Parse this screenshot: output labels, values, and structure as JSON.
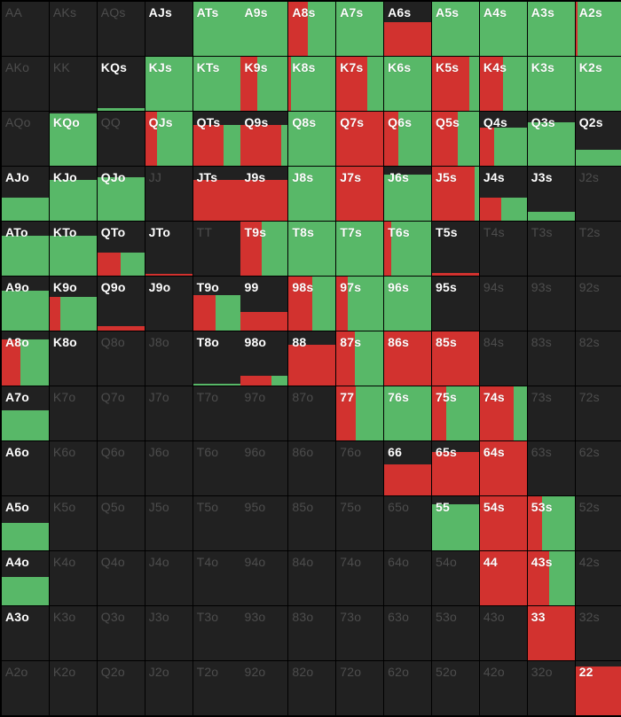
{
  "colors": {
    "raise": "#d2322f",
    "call": "#58b868",
    "fold": "#212121",
    "active_text": "#ffffff",
    "inactive_text": "#4d4d4d"
  },
  "matrix": [
    [
      {
        "hand": "AA",
        "active": false,
        "raise": 0,
        "call": 0
      },
      {
        "hand": "AKs",
        "active": false,
        "raise": 0,
        "call": 0
      },
      {
        "hand": "AQs",
        "active": false,
        "raise": 0,
        "call": 0
      },
      {
        "hand": "AJs",
        "active": true,
        "raise": 0,
        "call": 0
      },
      {
        "hand": "ATs",
        "active": true,
        "raise": 0,
        "call": 1
      },
      {
        "hand": "A9s",
        "active": true,
        "raise": 0,
        "call": 1
      },
      {
        "hand": "A8s",
        "active": true,
        "raise": 0.4,
        "call": 0.6
      },
      {
        "hand": "A7s",
        "active": true,
        "raise": 0,
        "call": 1
      },
      {
        "hand": "A6s",
        "active": true,
        "raise": 1,
        "call": 0,
        "h": 0.62
      },
      {
        "hand": "A5s",
        "active": true,
        "raise": 0,
        "call": 1
      },
      {
        "hand": "A4s",
        "active": true,
        "raise": 0,
        "call": 1
      },
      {
        "hand": "A3s",
        "active": true,
        "raise": 0,
        "call": 1
      },
      {
        "hand": "A2s",
        "active": true,
        "raise": 0.05,
        "call": 0.95
      }
    ],
    [
      {
        "hand": "AKo",
        "active": false,
        "raise": 0,
        "call": 0
      },
      {
        "hand": "KK",
        "active": false,
        "raise": 0,
        "call": 0
      },
      {
        "hand": "KQs",
        "active": true,
        "raise": 0,
        "call": 1,
        "h": 0.05
      },
      {
        "hand": "KJs",
        "active": true,
        "raise": 0,
        "call": 1
      },
      {
        "hand": "KTs",
        "active": true,
        "raise": 0,
        "call": 1
      },
      {
        "hand": "K9s",
        "active": true,
        "raise": 0.35,
        "call": 0.65
      },
      {
        "hand": "K8s",
        "active": true,
        "raise": 0.05,
        "call": 0.95
      },
      {
        "hand": "K7s",
        "active": true,
        "raise": 0.65,
        "call": 0.35
      },
      {
        "hand": "K6s",
        "active": true,
        "raise": 0,
        "call": 1
      },
      {
        "hand": "K5s",
        "active": true,
        "raise": 0.8,
        "call": 0.2
      },
      {
        "hand": "K4s",
        "active": true,
        "raise": 0.5,
        "call": 0.5
      },
      {
        "hand": "K3s",
        "active": true,
        "raise": 0,
        "call": 1
      },
      {
        "hand": "K2s",
        "active": true,
        "raise": 0,
        "call": 1
      }
    ],
    [
      {
        "hand": "AQo",
        "active": false,
        "raise": 0,
        "call": 0
      },
      {
        "hand": "KQo",
        "active": true,
        "raise": 0,
        "call": 1,
        "h": 0.97
      },
      {
        "hand": "QQ",
        "active": false,
        "raise": 0,
        "call": 0
      },
      {
        "hand": "QJs",
        "active": true,
        "raise": 0.25,
        "call": 0.75
      },
      {
        "hand": "QTs",
        "active": true,
        "raise": 0.65,
        "call": 0.35,
        "h": 0.75
      },
      {
        "hand": "Q9s",
        "active": true,
        "raise": 0.85,
        "call": 0.15,
        "h": 0.75
      },
      {
        "hand": "Q8s",
        "active": true,
        "raise": 0,
        "call": 1
      },
      {
        "hand": "Q7s",
        "active": true,
        "raise": 1,
        "call": 0
      },
      {
        "hand": "Q6s",
        "active": true,
        "raise": 0.3,
        "call": 0.7
      },
      {
        "hand": "Q5s",
        "active": true,
        "raise": 0.55,
        "call": 0.45
      },
      {
        "hand": "Q4s",
        "active": true,
        "raise": 0.3,
        "call": 0.7,
        "h": 0.7
      },
      {
        "hand": "Q3s",
        "active": true,
        "raise": 0,
        "call": 1,
        "h": 0.8
      },
      {
        "hand": "Q2s",
        "active": true,
        "raise": 0,
        "call": 1,
        "h": 0.3
      }
    ],
    [
      {
        "hand": "AJo",
        "active": true,
        "raise": 0,
        "call": 1,
        "h": 0.42
      },
      {
        "hand": "KJo",
        "active": true,
        "raise": 0,
        "call": 1,
        "h": 0.76
      },
      {
        "hand": "QJo",
        "active": true,
        "raise": 0,
        "call": 1,
        "h": 0.8
      },
      {
        "hand": "JJ",
        "active": false,
        "raise": 0,
        "call": 0
      },
      {
        "hand": "JTs",
        "active": true,
        "raise": 1,
        "call": 0,
        "h": 0.75
      },
      {
        "hand": "J9s",
        "active": true,
        "raise": 1,
        "call": 0,
        "h": 0.75
      },
      {
        "hand": "J8s",
        "active": true,
        "raise": 0,
        "call": 1
      },
      {
        "hand": "J7s",
        "active": true,
        "raise": 1,
        "call": 0
      },
      {
        "hand": "J6s",
        "active": true,
        "raise": 0,
        "call": 1,
        "h": 0.85
      },
      {
        "hand": "J5s",
        "active": true,
        "raise": 0.9,
        "call": 0.1
      },
      {
        "hand": "J4s",
        "active": true,
        "raise": 0.45,
        "call": 0.55,
        "h": 0.42
      },
      {
        "hand": "J3s",
        "active": true,
        "raise": 0,
        "call": 1,
        "h": 0.16
      },
      {
        "hand": "J2s",
        "active": false,
        "raise": 0,
        "call": 0
      }
    ],
    [
      {
        "hand": "ATo",
        "active": true,
        "raise": 0,
        "call": 1,
        "h": 0.73
      },
      {
        "hand": "KTo",
        "active": true,
        "raise": 0,
        "call": 1,
        "h": 0.73
      },
      {
        "hand": "QTo",
        "active": true,
        "raise": 0.5,
        "call": 0.5,
        "h": 0.42
      },
      {
        "hand": "JTo",
        "active": true,
        "raise": 1,
        "call": 0,
        "h": 0.04
      },
      {
        "hand": "TT",
        "active": false,
        "raise": 0,
        "call": 0
      },
      {
        "hand": "T9s",
        "active": true,
        "raise": 0.45,
        "call": 0.55
      },
      {
        "hand": "T8s",
        "active": true,
        "raise": 0,
        "call": 1
      },
      {
        "hand": "T7s",
        "active": true,
        "raise": 0,
        "call": 1
      },
      {
        "hand": "T6s",
        "active": true,
        "raise": 0.15,
        "call": 0.85
      },
      {
        "hand": "T5s",
        "active": true,
        "raise": 1,
        "call": 0,
        "h": 0.05
      },
      {
        "hand": "T4s",
        "active": false,
        "raise": 0,
        "call": 0
      },
      {
        "hand": "T3s",
        "active": false,
        "raise": 0,
        "call": 0
      },
      {
        "hand": "T2s",
        "active": false,
        "raise": 0,
        "call": 0
      }
    ],
    [
      {
        "hand": "A9o",
        "active": true,
        "raise": 0,
        "call": 1,
        "h": 0.73
      },
      {
        "hand": "K9o",
        "active": true,
        "raise": 0.22,
        "call": 0.78,
        "h": 0.62
      },
      {
        "hand": "Q9o",
        "active": true,
        "raise": 1,
        "call": 0,
        "h": 0.08
      },
      {
        "hand": "J9o",
        "active": true,
        "raise": 0,
        "call": 0
      },
      {
        "hand": "T9o",
        "active": true,
        "raise": 0.48,
        "call": 0.52,
        "h": 0.65
      },
      {
        "hand": "99",
        "active": true,
        "raise": 1,
        "call": 0,
        "h": 0.35
      },
      {
        "hand": "98s",
        "active": true,
        "raise": 0.5,
        "call": 0.5
      },
      {
        "hand": "97s",
        "active": true,
        "raise": 0.25,
        "call": 0.75
      },
      {
        "hand": "96s",
        "active": true,
        "raise": 0,
        "call": 1
      },
      {
        "hand": "95s",
        "active": true,
        "raise": 0,
        "call": 0
      },
      {
        "hand": "94s",
        "active": false,
        "raise": 0,
        "call": 0
      },
      {
        "hand": "93s",
        "active": false,
        "raise": 0,
        "call": 0
      },
      {
        "hand": "92s",
        "active": false,
        "raise": 0,
        "call": 0
      }
    ],
    [
      {
        "hand": "A8o",
        "active": true,
        "raise": 0.4,
        "call": 0.6,
        "h": 0.85
      },
      {
        "hand": "K8o",
        "active": true,
        "raise": 0,
        "call": 0
      },
      {
        "hand": "Q8o",
        "active": false,
        "raise": 0,
        "call": 0
      },
      {
        "hand": "J8o",
        "active": false,
        "raise": 0,
        "call": 0
      },
      {
        "hand": "T8o",
        "active": true,
        "raise": 0,
        "call": 1,
        "h": 0.03
      },
      {
        "hand": "98o",
        "active": true,
        "raise": 0.65,
        "call": 0.35,
        "h": 0.18
      },
      {
        "hand": "88",
        "active": true,
        "raise": 1,
        "call": 0,
        "h": 0.75
      },
      {
        "hand": "87s",
        "active": true,
        "raise": 0.4,
        "call": 0.6
      },
      {
        "hand": "86s",
        "active": true,
        "raise": 1,
        "call": 0
      },
      {
        "hand": "85s",
        "active": true,
        "raise": 1,
        "call": 0
      },
      {
        "hand": "84s",
        "active": false,
        "raise": 0,
        "call": 0
      },
      {
        "hand": "83s",
        "active": false,
        "raise": 0,
        "call": 0
      },
      {
        "hand": "82s",
        "active": false,
        "raise": 0,
        "call": 0
      }
    ],
    [
      {
        "hand": "A7o",
        "active": true,
        "raise": 0,
        "call": 1,
        "h": 0.55
      },
      {
        "hand": "K7o",
        "active": false,
        "raise": 0,
        "call": 0
      },
      {
        "hand": "Q7o",
        "active": false,
        "raise": 0,
        "call": 0
      },
      {
        "hand": "J7o",
        "active": false,
        "raise": 0,
        "call": 0
      },
      {
        "hand": "T7o",
        "active": false,
        "raise": 0,
        "call": 0
      },
      {
        "hand": "97o",
        "active": false,
        "raise": 0,
        "call": 0
      },
      {
        "hand": "87o",
        "active": false,
        "raise": 0,
        "call": 0
      },
      {
        "hand": "77",
        "active": true,
        "raise": 0.42,
        "call": 0.58
      },
      {
        "hand": "76s",
        "active": true,
        "raise": 0,
        "call": 1
      },
      {
        "hand": "75s",
        "active": true,
        "raise": 0.3,
        "call": 0.7
      },
      {
        "hand": "74s",
        "active": true,
        "raise": 0.72,
        "call": 0.28
      },
      {
        "hand": "73s",
        "active": false,
        "raise": 0,
        "call": 0
      },
      {
        "hand": "72s",
        "active": false,
        "raise": 0,
        "call": 0
      }
    ],
    [
      {
        "hand": "A6o",
        "active": true,
        "raise": 0,
        "call": 0
      },
      {
        "hand": "K6o",
        "active": false,
        "raise": 0,
        "call": 0
      },
      {
        "hand": "Q6o",
        "active": false,
        "raise": 0,
        "call": 0
      },
      {
        "hand": "J6o",
        "active": false,
        "raise": 0,
        "call": 0
      },
      {
        "hand": "T6o",
        "active": false,
        "raise": 0,
        "call": 0
      },
      {
        "hand": "96o",
        "active": false,
        "raise": 0,
        "call": 0
      },
      {
        "hand": "86o",
        "active": false,
        "raise": 0,
        "call": 0
      },
      {
        "hand": "76o",
        "active": false,
        "raise": 0,
        "call": 0
      },
      {
        "hand": "66",
        "active": true,
        "raise": 1,
        "call": 0,
        "h": 0.58
      },
      {
        "hand": "65s",
        "active": true,
        "raise": 1,
        "call": 0,
        "h": 0.8
      },
      {
        "hand": "64s",
        "active": true,
        "raise": 1,
        "call": 0
      },
      {
        "hand": "63s",
        "active": false,
        "raise": 0,
        "call": 0
      },
      {
        "hand": "62s",
        "active": false,
        "raise": 0,
        "call": 0
      }
    ],
    [
      {
        "hand": "A5o",
        "active": true,
        "raise": 0,
        "call": 1,
        "h": 0.5
      },
      {
        "hand": "K5o",
        "active": false,
        "raise": 0,
        "call": 0
      },
      {
        "hand": "Q5o",
        "active": false,
        "raise": 0,
        "call": 0
      },
      {
        "hand": "J5o",
        "active": false,
        "raise": 0,
        "call": 0
      },
      {
        "hand": "T5o",
        "active": false,
        "raise": 0,
        "call": 0
      },
      {
        "hand": "95o",
        "active": false,
        "raise": 0,
        "call": 0
      },
      {
        "hand": "85o",
        "active": false,
        "raise": 0,
        "call": 0
      },
      {
        "hand": "75o",
        "active": false,
        "raise": 0,
        "call": 0
      },
      {
        "hand": "65o",
        "active": false,
        "raise": 0,
        "call": 0
      },
      {
        "hand": "55",
        "active": true,
        "raise": 0,
        "call": 1,
        "h": 0.85
      },
      {
        "hand": "54s",
        "active": true,
        "raise": 1,
        "call": 0
      },
      {
        "hand": "53s",
        "active": true,
        "raise": 0.3,
        "call": 0.7
      },
      {
        "hand": "52s",
        "active": false,
        "raise": 0,
        "call": 0
      }
    ],
    [
      {
        "hand": "A4o",
        "active": true,
        "raise": 0,
        "call": 1,
        "h": 0.52
      },
      {
        "hand": "K4o",
        "active": false,
        "raise": 0,
        "call": 0
      },
      {
        "hand": "Q4o",
        "active": false,
        "raise": 0,
        "call": 0
      },
      {
        "hand": "J4o",
        "active": false,
        "raise": 0,
        "call": 0
      },
      {
        "hand": "T4o",
        "active": false,
        "raise": 0,
        "call": 0
      },
      {
        "hand": "94o",
        "active": false,
        "raise": 0,
        "call": 0
      },
      {
        "hand": "84o",
        "active": false,
        "raise": 0,
        "call": 0
      },
      {
        "hand": "74o",
        "active": false,
        "raise": 0,
        "call": 0
      },
      {
        "hand": "64o",
        "active": false,
        "raise": 0,
        "call": 0
      },
      {
        "hand": "54o",
        "active": false,
        "raise": 0,
        "call": 0
      },
      {
        "hand": "44",
        "active": true,
        "raise": 1,
        "call": 0
      },
      {
        "hand": "43s",
        "active": true,
        "raise": 0.45,
        "call": 0.55
      },
      {
        "hand": "42s",
        "active": false,
        "raise": 0,
        "call": 0
      }
    ],
    [
      {
        "hand": "A3o",
        "active": true,
        "raise": 0,
        "call": 0
      },
      {
        "hand": "K3o",
        "active": false,
        "raise": 0,
        "call": 0
      },
      {
        "hand": "Q3o",
        "active": false,
        "raise": 0,
        "call": 0
      },
      {
        "hand": "J3o",
        "active": false,
        "raise": 0,
        "call": 0
      },
      {
        "hand": "T3o",
        "active": false,
        "raise": 0,
        "call": 0
      },
      {
        "hand": "93o",
        "active": false,
        "raise": 0,
        "call": 0
      },
      {
        "hand": "83o",
        "active": false,
        "raise": 0,
        "call": 0
      },
      {
        "hand": "73o",
        "active": false,
        "raise": 0,
        "call": 0
      },
      {
        "hand": "63o",
        "active": false,
        "raise": 0,
        "call": 0
      },
      {
        "hand": "53o",
        "active": false,
        "raise": 0,
        "call": 0
      },
      {
        "hand": "43o",
        "active": false,
        "raise": 0,
        "call": 0
      },
      {
        "hand": "33",
        "active": true,
        "raise": 1,
        "call": 0
      },
      {
        "hand": "32s",
        "active": false,
        "raise": 0,
        "call": 0
      }
    ],
    [
      {
        "hand": "A2o",
        "active": false,
        "raise": 0,
        "call": 0
      },
      {
        "hand": "K2o",
        "active": false,
        "raise": 0,
        "call": 0
      },
      {
        "hand": "Q2o",
        "active": false,
        "raise": 0,
        "call": 0
      },
      {
        "hand": "J2o",
        "active": false,
        "raise": 0,
        "call": 0
      },
      {
        "hand": "T2o",
        "active": false,
        "raise": 0,
        "call": 0
      },
      {
        "hand": "92o",
        "active": false,
        "raise": 0,
        "call": 0
      },
      {
        "hand": "82o",
        "active": false,
        "raise": 0,
        "call": 0
      },
      {
        "hand": "72o",
        "active": false,
        "raise": 0,
        "call": 0
      },
      {
        "hand": "62o",
        "active": false,
        "raise": 0,
        "call": 0
      },
      {
        "hand": "52o",
        "active": false,
        "raise": 0,
        "call": 0
      },
      {
        "hand": "42o",
        "active": false,
        "raise": 0,
        "call": 0
      },
      {
        "hand": "32o",
        "active": false,
        "raise": 0,
        "call": 0
      },
      {
        "hand": "22",
        "active": true,
        "raise": 1,
        "call": 0,
        "h": 0.9
      }
    ]
  ]
}
